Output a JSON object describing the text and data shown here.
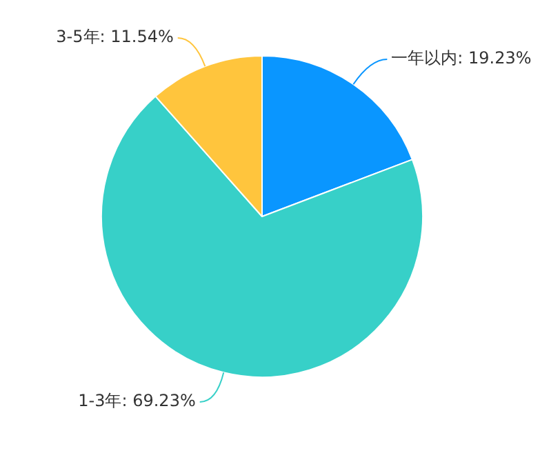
{
  "chart_data": {
    "type": "pie",
    "categories": [
      "一年以内",
      "1-3年",
      "3-5年"
    ],
    "values": [
      19.23,
      69.23,
      11.54
    ],
    "colors": [
      "#0a96ff",
      "#37d0c8",
      "#ffc53d"
    ],
    "value_labels": [
      "19.23%",
      "69.23%",
      "11.54%"
    ],
    "legend": false
  }
}
